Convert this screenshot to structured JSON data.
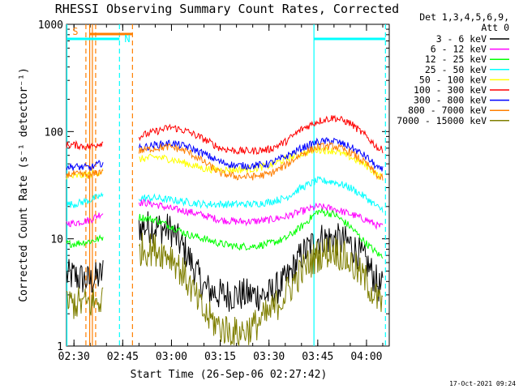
{
  "chart_data": {
    "type": "line",
    "title": "RHESSI Observing Summary Count Rates, Corrected",
    "xlabel": "Start Time (26-Sep-06 02:27:42)",
    "ylabel": "Corrected Count Rate (s⁻¹ detector⁻¹)",
    "y_scale": "log",
    "ylim": [
      1,
      1000
    ],
    "xlim": [
      "02:27:42",
      "04:07:00"
    ],
    "x_ticks": [
      "02:30",
      "02:45",
      "03:00",
      "03:15",
      "03:30",
      "03:45",
      "04:00"
    ],
    "y_ticks": [
      "1",
      "10",
      "100",
      "1000"
    ],
    "legend_header": [
      "Det 1,3,4,5,6,9,",
      "Att 0"
    ],
    "legend_position": "right",
    "footer": "17-Oct-2021 09:24",
    "flags": {
      "saa_label": "S",
      "night_label": "N",
      "saa_color": "#ff7f00",
      "night_color": "#00ffff"
    },
    "segments": [
      [
        "02:27:42",
        "02:39:00"
      ],
      [
        "02:50:00",
        "04:05:00"
      ]
    ],
    "series": [
      {
        "name": "3 - 6 keV",
        "color": "#000000",
        "x": [
          "02:30",
          "02:35",
          "02:38",
          "02:50",
          "02:55",
          "03:00",
          "03:05",
          "03:10",
          "03:15",
          "03:20",
          "03:25",
          "03:30",
          "03:35",
          "03:40",
          "03:45",
          "03:50",
          "03:55",
          "04:00",
          "04:04"
        ],
        "values": [
          4.5,
          4.0,
          4.5,
          13,
          13,
          12,
          7,
          3.5,
          3,
          3,
          3,
          3,
          4,
          7,
          10,
          10,
          9,
          6,
          3.5
        ]
      },
      {
        "name": "6 - 12 keV",
        "color": "#ff00ff",
        "x": [
          "02:30",
          "02:35",
          "02:38",
          "02:50",
          "02:55",
          "03:00",
          "03:05",
          "03:10",
          "03:15",
          "03:20",
          "03:25",
          "03:30",
          "03:35",
          "03:40",
          "03:45",
          "03:50",
          "03:55",
          "04:00",
          "04:04"
        ],
        "values": [
          14,
          15,
          17,
          22,
          21,
          19,
          18,
          16.5,
          15,
          14.5,
          14.5,
          15,
          16,
          18,
          20,
          19,
          17,
          15,
          13
        ]
      },
      {
        "name": "12 - 25 keV",
        "color": "#00ff00",
        "x": [
          "02:30",
          "02:35",
          "02:38",
          "02:50",
          "02:55",
          "03:00",
          "03:05",
          "03:10",
          "03:15",
          "03:20",
          "03:25",
          "03:30",
          "03:35",
          "03:40",
          "03:45",
          "03:50",
          "03:55",
          "04:00",
          "04:04"
        ],
        "values": [
          9,
          9.5,
          10,
          16,
          15,
          13,
          11,
          10,
          9,
          8.5,
          8.5,
          9,
          10,
          13,
          18,
          17,
          13,
          9,
          7
        ]
      },
      {
        "name": "25 - 50 keV",
        "color": "#00ffff",
        "x": [
          "02:30",
          "02:35",
          "02:38",
          "02:50",
          "02:55",
          "03:00",
          "03:05",
          "03:10",
          "03:15",
          "03:20",
          "03:25",
          "03:30",
          "03:35",
          "03:40",
          "03:45",
          "03:50",
          "03:55",
          "04:00",
          "04:04"
        ],
        "values": [
          21,
          23,
          25,
          24,
          24,
          23,
          22,
          21,
          21,
          21,
          21,
          22,
          24,
          30,
          35,
          34,
          30,
          24,
          19
        ]
      },
      {
        "name": "50 - 100 keV",
        "color": "#ffff00",
        "x": [
          "02:30",
          "02:35",
          "02:38",
          "02:50",
          "02:55",
          "03:00",
          "03:05",
          "03:10",
          "03:15",
          "03:20",
          "03:25",
          "03:30",
          "03:35",
          "03:40",
          "03:45",
          "03:50",
          "03:55",
          "04:00",
          "04:04"
        ],
        "values": [
          38,
          40,
          42,
          55,
          58,
          55,
          50,
          45,
          44,
          44,
          45,
          48,
          55,
          62,
          68,
          66,
          58,
          48,
          38
        ]
      },
      {
        "name": "100 - 300 keV",
        "color": "#ff0000",
        "x": [
          "02:30",
          "02:35",
          "02:38",
          "02:50",
          "02:55",
          "03:00",
          "03:05",
          "03:10",
          "03:15",
          "03:20",
          "03:25",
          "03:30",
          "03:35",
          "03:40",
          "03:45",
          "03:50",
          "03:55",
          "04:00",
          "04:04"
        ],
        "values": [
          75,
          72,
          78,
          90,
          100,
          110,
          100,
          85,
          70,
          66,
          66,
          68,
          80,
          105,
          125,
          135,
          120,
          90,
          68
        ]
      },
      {
        "name": "300 - 800 keV",
        "color": "#0000ff",
        "x": [
          "02:30",
          "02:35",
          "02:38",
          "02:50",
          "02:55",
          "03:00",
          "03:05",
          "03:10",
          "03:15",
          "03:20",
          "03:25",
          "03:30",
          "03:35",
          "03:40",
          "03:45",
          "03:50",
          "03:55",
          "04:00",
          "04:04"
        ],
        "values": [
          47,
          46,
          50,
          70,
          75,
          78,
          72,
          62,
          52,
          48,
          48,
          50,
          58,
          70,
          80,
          82,
          72,
          58,
          44
        ]
      },
      {
        "name": "800 - 7000 keV",
        "color": "#ff7f00",
        "x": [
          "02:30",
          "02:35",
          "02:38",
          "02:50",
          "02:55",
          "03:00",
          "03:05",
          "03:10",
          "03:15",
          "03:20",
          "03:25",
          "03:30",
          "03:35",
          "03:40",
          "03:45",
          "03:50",
          "03:55",
          "04:00",
          "04:04"
        ],
        "values": [
          40,
          39,
          42,
          66,
          70,
          72,
          65,
          52,
          41,
          38,
          38,
          40,
          48,
          62,
          72,
          73,
          64,
          50,
          37
        ]
      },
      {
        "name": "7000 - 15000 keV",
        "color": "#7f7f00",
        "x": [
          "02:30",
          "02:35",
          "02:38",
          "02:50",
          "02:55",
          "03:00",
          "03:05",
          "03:10",
          "03:15",
          "03:20",
          "03:25",
          "03:30",
          "03:35",
          "03:40",
          "03:45",
          "03:50",
          "03:55",
          "04:00",
          "04:04"
        ],
        "values": [
          2.5,
          2.5,
          2.6,
          8,
          8,
          7,
          4,
          2,
          1.5,
          1.3,
          1.5,
          2,
          3,
          5,
          7,
          8,
          6,
          4,
          2.5
        ]
      }
    ]
  }
}
